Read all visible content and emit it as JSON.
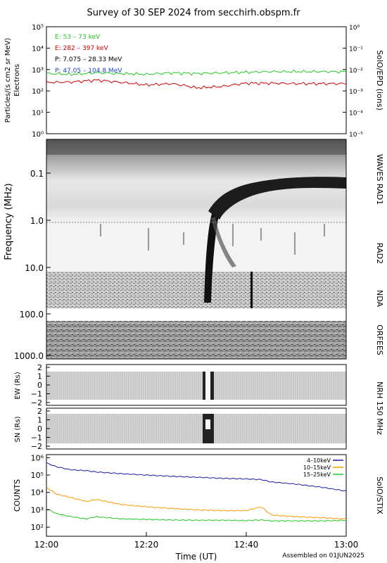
{
  "title": "Survey of 30 SEP 2024 from secchirh.obspm.fr",
  "footer": "Assembled on 01JUN2025",
  "x_axis": {
    "label": "Time (UT)",
    "range": [
      "12:00",
      "13:00"
    ],
    "ticks": [
      "12:00",
      "12:20",
      "12:40",
      "13:00"
    ]
  },
  "panels": {
    "epd": {
      "ylabel_line1": "Particles/(s cm2 sr MeV)",
      "ylabel_line2": "Electrons",
      "right_label": "SolO/EPD (ions)",
      "left_ticks": [
        "10⁰",
        "10¹",
        "10²",
        "10³",
        "10⁴",
        "10⁵"
      ],
      "right_ticks": [
        "10⁻⁵",
        "10⁻⁴",
        "10⁻³",
        "10⁻²",
        "10⁻¹",
        "10⁰"
      ],
      "legend": [
        {
          "text": "E: 53 – 73 keV",
          "color": "#22cc22"
        },
        {
          "text": "E: 282 – 397 keV",
          "color": "#d40000"
        },
        {
          "text": "P: 7.075 – 28.33 MeV",
          "color": "#000000"
        },
        {
          "text": "P: 47.05 – 104.8 MeV",
          "color": "#2244cc"
        }
      ]
    },
    "radio": {
      "ylabel": "Frequency (MHz)",
      "ticks": [
        "0.1",
        "1.0",
        "10.0",
        "100.0",
        "1000.0"
      ],
      "instrument_labels": [
        "WAVES RAD1",
        "RAD2",
        "NDA",
        "ORFEES"
      ]
    },
    "nrh_ew": {
      "ylabel": "EW (Rs)",
      "ticks": [
        "2",
        "1",
        "0",
        "−1",
        "−2"
      ],
      "right_label": "NRH 150 MHz"
    },
    "nrh_sn": {
      "ylabel": "SN (Rs)",
      "ticks": [
        "2",
        "1",
        "0",
        "−1",
        "−2"
      ]
    },
    "stix": {
      "ylabel": "COUNTS",
      "right_label": "SolO/STIX",
      "ticks": [
        "10²",
        "10³",
        "10⁴",
        "10⁵",
        "10⁶"
      ]
    }
  },
  "chart_data": [
    {
      "type": "line",
      "panel": "SolO/EPD",
      "x_unit": "minutes after 12:00 UT",
      "ylim_left": [
        1,
        100000
      ],
      "ylim_right": [
        1e-05,
        1
      ],
      "log_y": true,
      "x": [
        0,
        5,
        10,
        15,
        20,
        25,
        30,
        35,
        40,
        45,
        50,
        55,
        60
      ],
      "series": [
        {
          "name": "E: 53 – 73 keV",
          "color": "#22cc22",
          "values": [
            650,
            600,
            700,
            650,
            600,
            700,
            650,
            700,
            750,
            800,
            800,
            800,
            800
          ]
        },
        {
          "name": "E: 282 – 397 keV",
          "color": "#d40000",
          "values": [
            250,
            260,
            320,
            250,
            190,
            220,
            140,
            160,
            230,
            230,
            220,
            220,
            220
          ]
        }
      ]
    },
    {
      "type": "heatmap",
      "panel": "Radio dynamic spectrum",
      "ylim": [
        0.03,
        1200
      ],
      "log_y": true,
      "y_reversed": true,
      "events": [
        {
          "description": "type III burst",
          "time": "12:32",
          "freq_range_mhz": [
            0.2,
            40
          ]
        },
        {
          "description": "drifting emission",
          "time_range": [
            "12:32",
            "12:55"
          ],
          "freq_range_mhz": [
            0.2,
            1.2
          ]
        }
      ]
    },
    {
      "type": "line",
      "panel": "SolO/STIX",
      "x_unit": "minutes after 12:00 UT",
      "ylim": [
        30,
        1500000
      ],
      "log_y": true,
      "x": [
        0,
        2,
        5,
        8,
        10,
        15,
        20,
        25,
        30,
        35,
        40,
        43,
        45,
        50,
        55,
        60
      ],
      "series": [
        {
          "name": "4–10keV",
          "color": "#1a1aaa",
          "values": [
            500000,
            300000,
            200000,
            180000,
            150000,
            120000,
            100000,
            85000,
            75000,
            65000,
            60000,
            55000,
            40000,
            30000,
            20000,
            12000
          ]
        },
        {
          "name": "10–15keV",
          "color": "#ff9900",
          "values": [
            20000,
            8000,
            5000,
            3000,
            4000,
            2000,
            1500,
            1200,
            1000,
            900,
            900,
            1500,
            500,
            400,
            350,
            300
          ]
        },
        {
          "name": "15–25keV",
          "color": "#22cc22",
          "values": [
            1200,
            600,
            400,
            300,
            400,
            300,
            280,
            260,
            250,
            250,
            240,
            260,
            230,
            230,
            230,
            250
          ]
        }
      ]
    }
  ]
}
